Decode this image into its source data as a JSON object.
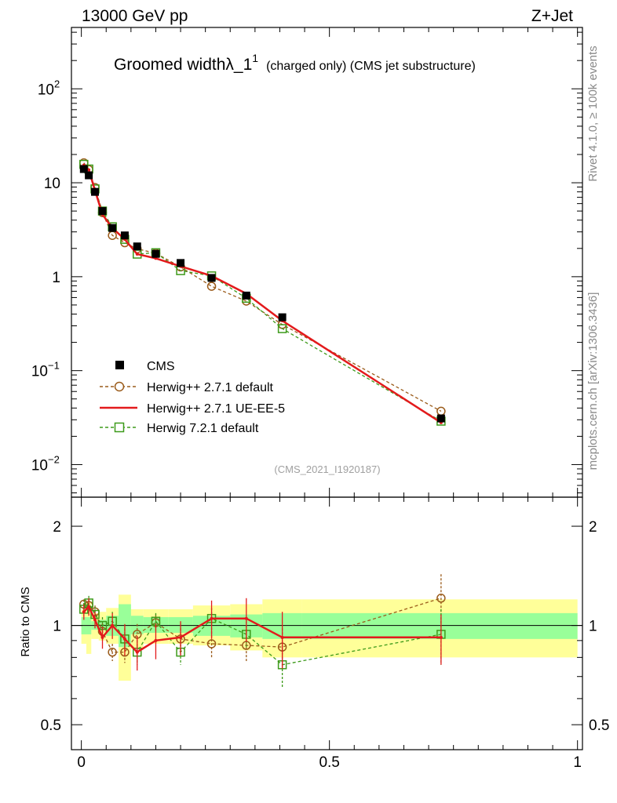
{
  "header": {
    "left_label": "13000 GeV pp",
    "right_label": "Z+Jet"
  },
  "side_labels": {
    "rivet": "Rivet 4.1.0, ≥ 100k events",
    "mcplots": "mcplots.cern.ch [arXiv:1306.3436]"
  },
  "watermark": "(CMS_2021_I1920187)",
  "chart_data": [
    {
      "type": "line",
      "panel": "main",
      "title": {
        "main": "Groomed width",
        "lambda": "λ",
        "sub": "_1",
        "sup": "1",
        "qualifier": "(charged only) (CMS jet substructure)"
      },
      "xlabel": "",
      "ylabel": "",
      "xlim": [
        -0.02,
        1.01
      ],
      "ylim": [
        0.0045,
        450
      ],
      "yscale": "log",
      "y_tick_labels": [
        {
          "value": 0.01,
          "base": "10",
          "exp": "−2"
        },
        {
          "value": 0.1,
          "base": "10",
          "exp": "−1"
        },
        {
          "value": 1,
          "base": "1",
          "exp": ""
        },
        {
          "value": 10,
          "base": "10",
          "exp": ""
        },
        {
          "value": 100,
          "base": "10",
          "exp": "2"
        }
      ],
      "legend": {
        "placement": "lower-left",
        "entries": [
          {
            "label": "CMS",
            "style": "data"
          },
          {
            "label": "Herwig++ 2.7.1 default",
            "style": "brown-circle-dashed"
          },
          {
            "label": "Herwig++ 2.7.1 UE-EE-5",
            "style": "red-solid"
          },
          {
            "label": "Herwig 7.2.1 default",
            "style": "green-square-dashed"
          }
        ]
      },
      "colors": {
        "data": "#000000",
        "herwigpp_default": "#9a5b1a",
        "herwigpp_ueee5": "#e31a1c",
        "herwig7": "#3d9a1a"
      },
      "x": [
        0.005,
        0.015,
        0.0275,
        0.0425,
        0.0625,
        0.0875,
        0.1125,
        0.15,
        0.2,
        0.2625,
        0.3325,
        0.405,
        0.725
      ],
      "x_edges": [
        0.0,
        0.01,
        0.02,
        0.035,
        0.05,
        0.075,
        0.1,
        0.125,
        0.175,
        0.225,
        0.3,
        0.365,
        0.445,
        1.0
      ],
      "series": [
        {
          "name": "CMS",
          "values": [
            14.0,
            12.0,
            8.0,
            5.0,
            3.3,
            2.75,
            2.1,
            1.75,
            1.4,
            0.97,
            0.63,
            0.37,
            0.031
          ]
        },
        {
          "name": "Herwig++ 2.7.1 default",
          "values": [
            16.3,
            13.8,
            8.9,
            4.8,
            2.75,
            2.3,
            1.98,
            1.78,
            1.27,
            0.79,
            0.55,
            0.31,
            0.037
          ]
        },
        {
          "name": "Herwig++ 2.7.1 UE-EE-5",
          "values": [
            15.4,
            13.7,
            8.3,
            4.6,
            3.3,
            2.5,
            1.74,
            1.57,
            1.29,
            1.02,
            0.66,
            0.34,
            0.028
          ]
        },
        {
          "name": "Herwig 7.2.1 default",
          "values": [
            15.7,
            14.0,
            8.6,
            5.0,
            3.4,
            2.5,
            1.74,
            1.8,
            1.16,
            1.02,
            0.59,
            0.28,
            0.029
          ]
        }
      ]
    },
    {
      "type": "line",
      "panel": "ratio",
      "ylabel": "Ratio to CMS",
      "xlim": [
        -0.02,
        1.01
      ],
      "ylim": [
        0.42,
        2.45
      ],
      "yscale": "log",
      "y_tick_labels": [
        {
          "value": 0.5,
          "label": "0.5"
        },
        {
          "value": 1,
          "label": "1"
        },
        {
          "value": 2,
          "label": "2"
        }
      ],
      "x_tick_labels": [
        {
          "value": 0,
          "label": "0"
        },
        {
          "value": 0.5,
          "label": "0.5"
        },
        {
          "value": 1,
          "label": "1"
        }
      ],
      "bands": {
        "inner_lo": [
          0.94,
          0.94,
          0.97,
          0.97,
          0.93,
          0.86,
          0.94,
          0.95,
          0.95,
          0.93,
          0.92,
          0.91,
          0.91
        ],
        "inner_hi": [
          1.06,
          1.06,
          1.03,
          1.04,
          1.07,
          1.16,
          1.07,
          1.06,
          1.06,
          1.07,
          1.08,
          1.09,
          1.09
        ],
        "outer_lo": [
          0.88,
          0.82,
          0.91,
          0.9,
          0.88,
          0.68,
          0.85,
          0.88,
          0.88,
          0.87,
          0.84,
          0.8,
          0.8
        ],
        "outer_hi": [
          1.12,
          1.18,
          1.09,
          1.1,
          1.13,
          1.24,
          1.12,
          1.12,
          1.12,
          1.15,
          1.16,
          1.2,
          1.2
        ]
      },
      "series": [
        {
          "name": "Herwig++ 2.7.1 default",
          "values": [
            1.16,
            1.15,
            1.1,
            0.96,
            0.83,
            0.83,
            0.94,
            1.02,
            0.91,
            0.88,
            0.87,
            0.86,
            1.21
          ],
          "err": [
            0.04,
            0.05,
            0.05,
            0.06,
            0.05,
            0.06,
            0.07,
            0.06,
            0.07,
            0.08,
            0.09,
            0.12,
            0.22
          ]
        },
        {
          "name": "Herwig++ 2.7.1 UE-EE-5",
          "values": [
            1.1,
            1.14,
            1.04,
            0.92,
            1.0,
            0.91,
            0.83,
            0.9,
            0.92,
            1.05,
            1.05,
            0.92,
            0.92
          ],
          "err": [
            0.06,
            0.07,
            0.06,
            0.07,
            0.09,
            0.1,
            0.1,
            0.11,
            0.11,
            0.14,
            0.16,
            0.18,
            0.16
          ]
        },
        {
          "name": "Herwig 7.2.1 default",
          "values": [
            1.12,
            1.17,
            1.08,
            1.0,
            1.03,
            0.91,
            0.83,
            1.03,
            0.83,
            1.05,
            0.94,
            0.76,
            0.94
          ],
          "err": [
            0.05,
            0.06,
            0.06,
            0.06,
            0.07,
            0.07,
            0.07,
            0.06,
            0.07,
            0.08,
            0.09,
            0.11,
            0.18
          ]
        }
      ]
    }
  ]
}
